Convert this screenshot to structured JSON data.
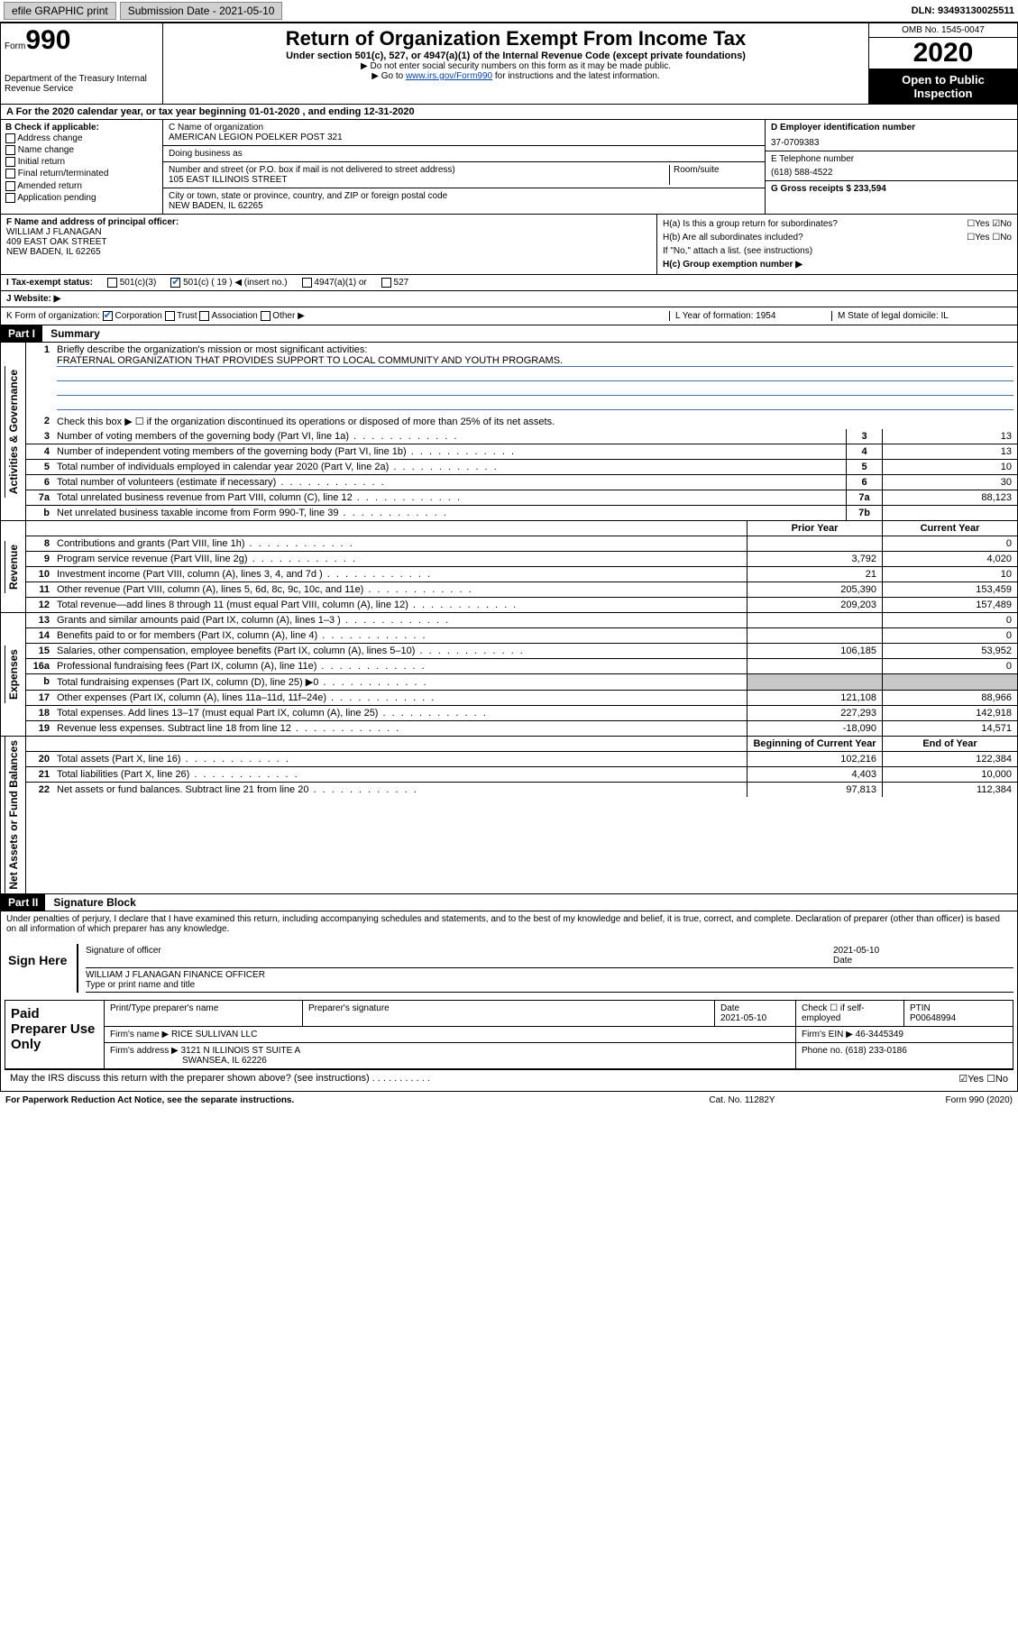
{
  "topbar": {
    "efile": "efile GRAPHIC print",
    "submission_label": "Submission Date - 2021-05-10",
    "dln": "DLN: 93493130025511"
  },
  "header": {
    "form_label": "Form",
    "form_num": "990",
    "dept": "Department of the Treasury\nInternal Revenue Service",
    "title": "Return of Organization Exempt From Income Tax",
    "subtitle": "Under section 501(c), 527, or 4947(a)(1) of the Internal Revenue Code (except private foundations)",
    "note1": "▶ Do not enter social security numbers on this form as it may be made public.",
    "note2_pre": "▶ Go to ",
    "note2_link": "www.irs.gov/Form990",
    "note2_post": " for instructions and the latest information.",
    "omb": "OMB No. 1545-0047",
    "year": "2020",
    "otp": "Open to Public Inspection"
  },
  "row_a": "A For the 2020 calendar year, or tax year beginning 01-01-2020   , and ending 12-31-2020",
  "box_b": {
    "label": "B Check if applicable:",
    "opts": [
      "Address change",
      "Name change",
      "Initial return",
      "Final return/terminated",
      "Amended return",
      "Application pending"
    ]
  },
  "box_c": {
    "name_label": "C Name of organization",
    "name": "AMERICAN LEGION POELKER POST 321",
    "dba": "Doing business as",
    "street_label": "Number and street (or P.O. box if mail is not delivered to street address)",
    "room": "Room/suite",
    "street": "105 EAST ILLINOIS STREET",
    "city_label": "City or town, state or province, country, and ZIP or foreign postal code",
    "city": "NEW BADEN, IL  62265"
  },
  "box_d": {
    "label": "D Employer identification number",
    "ein": "37-0709383"
  },
  "box_e": {
    "label": "E Telephone number",
    "phone": "(618) 588-4522"
  },
  "box_g": {
    "label": "G Gross receipts $ 233,594"
  },
  "box_f": {
    "label": "F  Name and address of principal officer:",
    "name": "WILLIAM J FLANAGAN",
    "addr1": "409 EAST OAK STREET",
    "addr2": "NEW BADEN, IL  62265"
  },
  "box_h": {
    "ha": "H(a)  Is this a group return for subordinates?",
    "ha_yn": "☐Yes ☑No",
    "hb": "H(b)  Are all subordinates included?",
    "hb_yn": "☐Yes ☐No",
    "hb_note": "If \"No,\" attach a list. (see instructions)",
    "hc": "H(c)  Group exemption number ▶"
  },
  "row_i": {
    "label": "I    Tax-exempt status:",
    "c3": "501(c)(3)",
    "c": "501(c) ( 19 ) ◀ (insert no.)",
    "a1": "4947(a)(1) or",
    "s527": "527"
  },
  "row_j": "J    Website: ▶",
  "row_k": {
    "label": "K Form of organization:",
    "corp": "Corporation",
    "trust": "Trust",
    "assoc": "Association",
    "other": "Other ▶"
  },
  "row_l": "L Year of formation: 1954",
  "row_m": "M State of legal domicile: IL",
  "part1": {
    "hdr": "Part I",
    "title": "Summary"
  },
  "q1": {
    "num": "1",
    "text": "Briefly describe the organization's mission or most significant activities:",
    "mission": "FRATERNAL ORGANIZATION THAT PROVIDES SUPPORT TO LOCAL COMMUNITY AND YOUTH PROGRAMS."
  },
  "q2": {
    "num": "2",
    "text": "Check this box ▶ ☐  if the organization discontinued its operations or disposed of more than 25% of its net assets."
  },
  "lines_single": [
    {
      "num": "3",
      "text": "Number of voting members of the governing body (Part VI, line 1a)",
      "cell": "3",
      "val": "13"
    },
    {
      "num": "4",
      "text": "Number of independent voting members of the governing body (Part VI, line 1b)",
      "cell": "4",
      "val": "13"
    },
    {
      "num": "5",
      "text": "Total number of individuals employed in calendar year 2020 (Part V, line 2a)",
      "cell": "5",
      "val": "10"
    },
    {
      "num": "6",
      "text": "Total number of volunteers (estimate if necessary)",
      "cell": "6",
      "val": "30"
    },
    {
      "num": "7a",
      "text": "Total unrelated business revenue from Part VIII, column (C), line 12",
      "cell": "7a",
      "val": "88,123"
    },
    {
      "num": "b",
      "text": "Net unrelated business taxable income from Form 990-T, line 39",
      "cell": "7b",
      "val": ""
    }
  ],
  "col_hdrs": {
    "prior": "Prior Year",
    "current": "Current Year"
  },
  "revenue_lines": [
    {
      "num": "8",
      "text": "Contributions and grants (Part VIII, line 1h)",
      "prior": "",
      "curr": "0"
    },
    {
      "num": "9",
      "text": "Program service revenue (Part VIII, line 2g)",
      "prior": "3,792",
      "curr": "4,020"
    },
    {
      "num": "10",
      "text": "Investment income (Part VIII, column (A), lines 3, 4, and 7d )",
      "prior": "21",
      "curr": "10"
    },
    {
      "num": "11",
      "text": "Other revenue (Part VIII, column (A), lines 5, 6d, 8c, 9c, 10c, and 11e)",
      "prior": "205,390",
      "curr": "153,459"
    },
    {
      "num": "12",
      "text": "Total revenue—add lines 8 through 11 (must equal Part VIII, column (A), line 12)",
      "prior": "209,203",
      "curr": "157,489"
    }
  ],
  "expense_lines": [
    {
      "num": "13",
      "text": "Grants and similar amounts paid (Part IX, column (A), lines 1–3 )",
      "prior": "",
      "curr": "0"
    },
    {
      "num": "14",
      "text": "Benefits paid to or for members (Part IX, column (A), line 4)",
      "prior": "",
      "curr": "0"
    },
    {
      "num": "15",
      "text": "Salaries, other compensation, employee benefits (Part IX, column (A), lines 5–10)",
      "prior": "106,185",
      "curr": "53,952"
    },
    {
      "num": "16a",
      "text": "Professional fundraising fees (Part IX, column (A), line 11e)",
      "prior": "",
      "curr": "0"
    },
    {
      "num": "b",
      "text": "Total fundraising expenses (Part IX, column (D), line 25) ▶0",
      "prior": "GRAY",
      "curr": "GRAY"
    },
    {
      "num": "17",
      "text": "Other expenses (Part IX, column (A), lines 11a–11d, 11f–24e)",
      "prior": "121,108",
      "curr": "88,966"
    },
    {
      "num": "18",
      "text": "Total expenses. Add lines 13–17 (must equal Part IX, column (A), line 25)",
      "prior": "227,293",
      "curr": "142,918"
    },
    {
      "num": "19",
      "text": "Revenue less expenses. Subtract line 18 from line 12",
      "prior": "-18,090",
      "curr": "14,571"
    }
  ],
  "net_hdrs": {
    "begin": "Beginning of Current Year",
    "end": "End of Year"
  },
  "net_lines": [
    {
      "num": "20",
      "text": "Total assets (Part X, line 16)",
      "prior": "102,216",
      "curr": "122,384"
    },
    {
      "num": "21",
      "text": "Total liabilities (Part X, line 26)",
      "prior": "4,403",
      "curr": "10,000"
    },
    {
      "num": "22",
      "text": "Net assets or fund balances. Subtract line 21 from line 20",
      "prior": "97,813",
      "curr": "112,384"
    }
  ],
  "vlabels": {
    "gov": "Activities & Governance",
    "rev": "Revenue",
    "exp": "Expenses",
    "net": "Net Assets or Fund Balances"
  },
  "part2": {
    "hdr": "Part II",
    "title": "Signature Block",
    "penalty": "Under penalties of perjury, I declare that I have examined this return, including accompanying schedules and statements, and to the best of my knowledge and belief, it is true, correct, and complete. Declaration of preparer (other than officer) is based on all information of which preparer has any knowledge."
  },
  "sign": {
    "left": "Sign Here",
    "sig_label": "Signature of officer",
    "date": "2021-05-10",
    "date_label": "Date",
    "name": "WILLIAM J FLANAGAN  FINANCE OFFICER",
    "name_label": "Type or print name and title"
  },
  "paid": {
    "left": "Paid Preparer Use Only",
    "r1c1": "Print/Type preparer's name",
    "r1c2": "Preparer's signature",
    "r1c3_label": "Date",
    "r1c3": "2021-05-10",
    "r1c4": "Check ☐ if self-employed",
    "r1c5_label": "PTIN",
    "r1c5": "P00648994",
    "r2a": "Firm's name    ▶  RICE SULLIVAN LLC",
    "r2b": "Firm's EIN ▶  46-3445349",
    "r3a": "Firm's address ▶ 3121 N ILLINOIS ST SUITE A",
    "r3a2": "SWANSEA, IL  62226",
    "r3b": "Phone no. (618) 233-0186"
  },
  "discuss": "May the IRS discuss this return with the preparer shown above? (see instructions)",
  "discuss_yn": "☑Yes  ☐No",
  "footer": {
    "left": "For Paperwork Reduction Act Notice, see the separate instructions.",
    "mid": "Cat. No. 11282Y",
    "right": "Form 990 (2020)"
  }
}
